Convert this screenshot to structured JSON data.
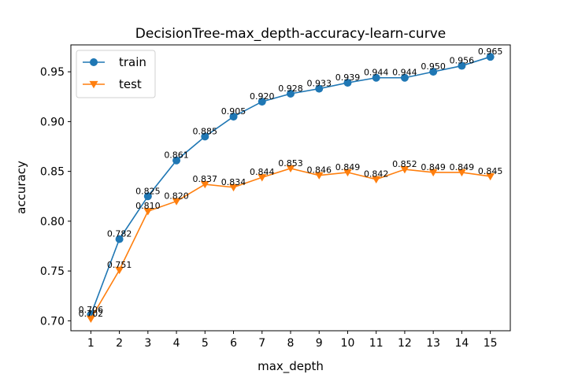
{
  "chart_data": {
    "type": "line",
    "title": "DecisionTree-max_depth-accuracy-learn-curve",
    "xlabel": "max_depth",
    "ylabel": "accuracy",
    "x": [
      1,
      2,
      3,
      4,
      5,
      6,
      7,
      8,
      9,
      10,
      11,
      12,
      13,
      14,
      15
    ],
    "ylim": [
      0.69,
      0.977
    ],
    "yticks": [
      0.7,
      0.75,
      0.8,
      0.85,
      0.9,
      0.95
    ],
    "ytick_labels": [
      "0.70",
      "0.75",
      "0.80",
      "0.85",
      "0.90",
      "0.95"
    ],
    "xtick_labels": [
      "1",
      "2",
      "3",
      "4",
      "5",
      "6",
      "7",
      "8",
      "9",
      "10",
      "11",
      "12",
      "13",
      "14",
      "15"
    ],
    "grid": false,
    "legend_position": "top-left",
    "series": [
      {
        "name": "train",
        "color": "#1f77b4",
        "marker": "circle",
        "values": [
          0.706,
          0.782,
          0.825,
          0.861,
          0.885,
          0.905,
          0.92,
          0.928,
          0.933,
          0.939,
          0.944,
          0.944,
          0.95,
          0.956,
          0.965
        ],
        "labels": [
          "0.706",
          "0.782",
          "0.825",
          "0.861",
          "0.885",
          "0.905",
          "0.920",
          "0.928",
          "0.933",
          "0.939",
          "0.944",
          "0.944",
          "0.950",
          "0.956",
          "0.965"
        ]
      },
      {
        "name": "test",
        "color": "#ff7f0e",
        "marker": "triangle-down",
        "values": [
          0.702,
          0.751,
          0.81,
          0.82,
          0.837,
          0.834,
          0.844,
          0.853,
          0.846,
          0.849,
          0.842,
          0.852,
          0.849,
          0.849,
          0.845
        ],
        "labels": [
          "0.702",
          "0.751",
          "0.810",
          "0.820",
          "0.837",
          "0.834",
          "0.844",
          "0.853",
          "0.846",
          "0.849",
          "0.842",
          "0.852",
          "0.849",
          "0.849",
          "0.845"
        ]
      }
    ]
  }
}
